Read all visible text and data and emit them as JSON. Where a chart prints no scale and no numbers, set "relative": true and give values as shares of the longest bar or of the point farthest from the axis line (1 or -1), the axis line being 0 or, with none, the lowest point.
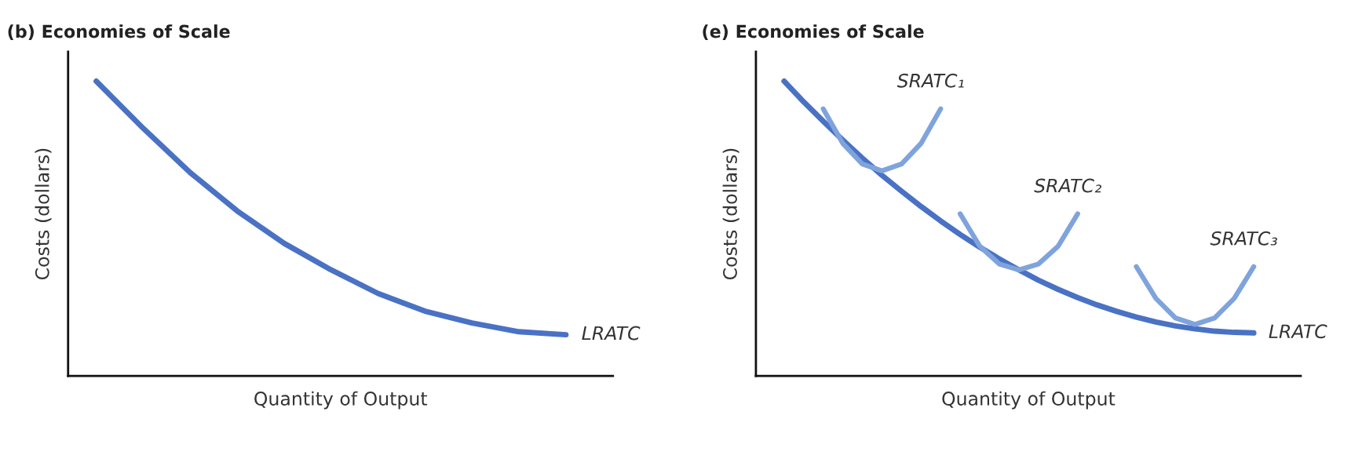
{
  "chart_data": [
    {
      "type": "line",
      "title": "(b) Economies of Scale",
      "xlabel": "Quantity of Output",
      "ylabel": "Costs (dollars)",
      "relative": true,
      "legend": false,
      "grid": false,
      "tick_labels": false,
      "categories": [
        null,
        null,
        null,
        null,
        null,
        null,
        null,
        null,
        null,
        null,
        null
      ],
      "series": [
        {
          "name": "LRATC",
          "color": "#4a72c4",
          "values": [
            1.0,
            0.84,
            0.69,
            0.56,
            0.45,
            0.36,
            0.28,
            0.22,
            0.18,
            0.15,
            0.14
          ]
        }
      ]
    },
    {
      "type": "line",
      "title": "(e) Economies of Scale",
      "xlabel": "Quantity of Output",
      "ylabel": "Costs (dollars)",
      "relative": true,
      "legend": false,
      "grid": false,
      "tick_labels": false,
      "categories": [
        null,
        null,
        null,
        null,
        null,
        null,
        null,
        null,
        null,
        null,
        null,
        null,
        null,
        null,
        null,
        null,
        null,
        null,
        null,
        null,
        null,
        null,
        null,
        null,
        null
      ],
      "series": [
        {
          "name": "LRATC",
          "color": "#4a72c4",
          "values": [
            1.0,
            0.93,
            0.864,
            0.8,
            0.739,
            0.681,
            0.627,
            0.575,
            0.526,
            0.48,
            0.437,
            0.397,
            0.36,
            0.325,
            0.294,
            0.266,
            0.241,
            0.219,
            0.2,
            0.183,
            0.17,
            0.16,
            0.152,
            0.148,
            0.146
          ]
        },
        {
          "name": "SRATC₁",
          "color": "#7fa3dc",
          "values": [
            null,
            null,
            0.906,
            0.789,
            0.719,
            0.696,
            0.719,
            0.789,
            0.906,
            null,
            null,
            null,
            null,
            null,
            null,
            null,
            null,
            null,
            null,
            null,
            null,
            null,
            null,
            null,
            null
          ]
        },
        {
          "name": "SRATC₂",
          "color": "#7fa3dc",
          "values": [
            null,
            null,
            null,
            null,
            null,
            null,
            null,
            null,
            null,
            0.55,
            0.44,
            0.38,
            0.36,
            0.38,
            0.44,
            0.55,
            null,
            null,
            null,
            null,
            null,
            null,
            null,
            null,
            null
          ]
        },
        {
          "name": "SRATC₃",
          "color": "#7fa3dc",
          "values": [
            null,
            null,
            null,
            null,
            null,
            null,
            null,
            null,
            null,
            null,
            null,
            null,
            null,
            null,
            null,
            null,
            null,
            null,
            0.371,
            0.263,
            0.197,
            0.175,
            0.197,
            0.263,
            0.371
          ]
        }
      ]
    }
  ]
}
